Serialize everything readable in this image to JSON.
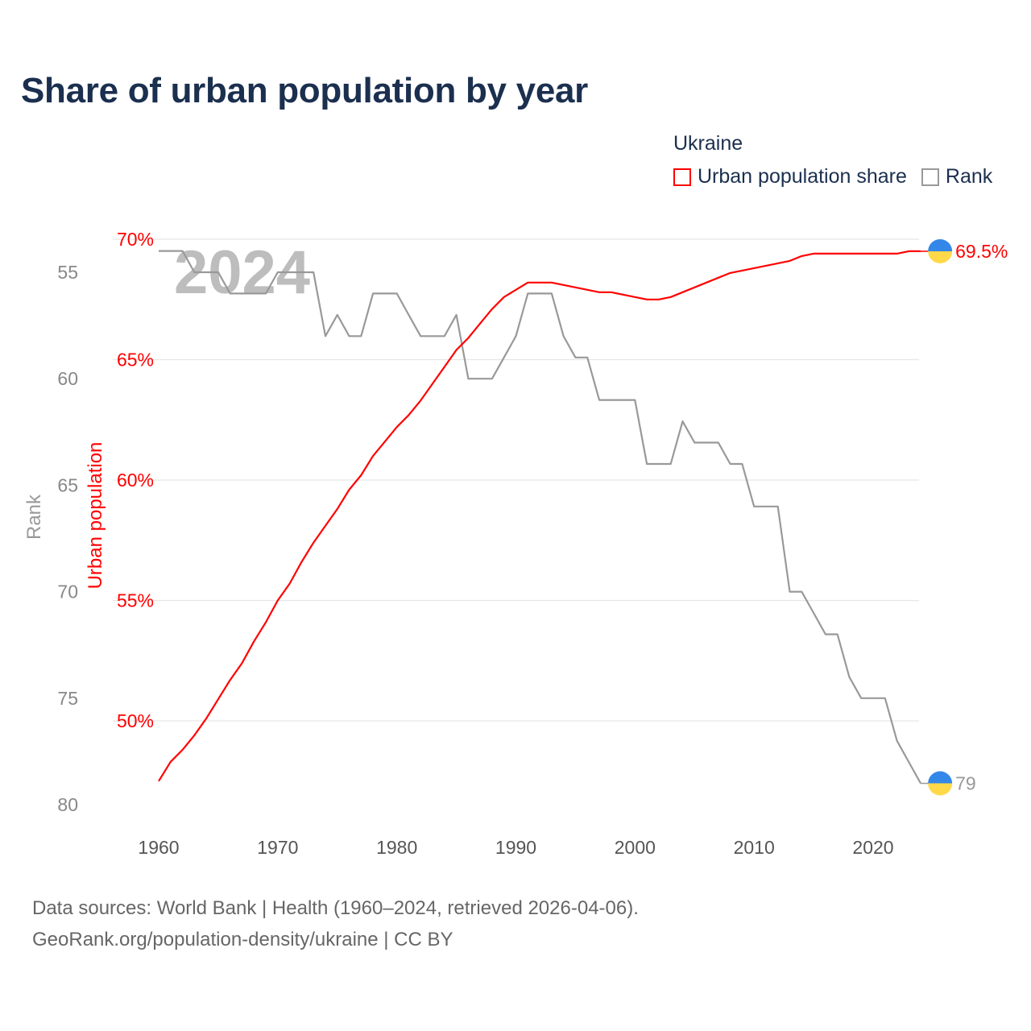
{
  "title": "Share of urban population by year",
  "legend": {
    "title": "Ukraine",
    "items": [
      {
        "label": "Urban population share",
        "color": "#ff0000"
      },
      {
        "label": "Rank",
        "color": "#999999"
      }
    ]
  },
  "footer": {
    "line1": "Data sources: World Bank | Health (1960–2024, retrieved 2026-04-06).",
    "line2": "GeoRank.org/population-density/ukraine | CC BY"
  },
  "chart_data": {
    "type": "line",
    "title": "Share of urban population by year",
    "watermark_year": "2024",
    "xlabel": "",
    "ylabel_right_axis": "Urban population",
    "ylabel_left_axis": "Rank",
    "xlim": [
      1960,
      2024
    ],
    "ylim_urban": [
      47,
      70.5
    ],
    "ylim_rank": [
      53.5,
      80.5
    ],
    "x_ticks": [
      "1960",
      "1970",
      "1980",
      "1990",
      "2000",
      "2010",
      "2020"
    ],
    "urban_ticks": [
      "70%",
      "65%",
      "60%",
      "55%",
      "50%"
    ],
    "rank_ticks": [
      "55",
      "60",
      "65",
      "70",
      "75",
      "80"
    ],
    "x": [
      1960,
      1961,
      1962,
      1963,
      1964,
      1965,
      1966,
      1967,
      1968,
      1969,
      1970,
      1971,
      1972,
      1973,
      1974,
      1975,
      1976,
      1977,
      1978,
      1979,
      1980,
      1981,
      1982,
      1983,
      1984,
      1985,
      1986,
      1987,
      1988,
      1989,
      1990,
      1991,
      1992,
      1993,
      1994,
      1995,
      1996,
      1997,
      1998,
      1999,
      2000,
      2001,
      2002,
      2003,
      2004,
      2005,
      2006,
      2007,
      2008,
      2009,
      2010,
      2011,
      2012,
      2013,
      2014,
      2015,
      2016,
      2017,
      2018,
      2019,
      2020,
      2021,
      2022,
      2023,
      2024
    ],
    "series": [
      {
        "name": "Urban population share",
        "color": "#ff0000",
        "values": [
          47.5,
          48.3,
          48.8,
          49.4,
          50.1,
          50.9,
          51.7,
          52.4,
          53.3,
          54.1,
          55.0,
          55.7,
          56.6,
          57.4,
          58.1,
          58.8,
          59.6,
          60.2,
          61.0,
          61.6,
          62.2,
          62.7,
          63.3,
          64.0,
          64.7,
          65.4,
          65.9,
          66.5,
          67.1,
          67.6,
          67.9,
          68.2,
          68.2,
          68.2,
          68.1,
          68.0,
          67.9,
          67.8,
          67.8,
          67.7,
          67.6,
          67.5,
          67.5,
          67.6,
          67.8,
          68.0,
          68.2,
          68.4,
          68.6,
          68.7,
          68.8,
          68.9,
          69.0,
          69.1,
          69.3,
          69.4,
          69.4,
          69.4,
          69.4,
          69.4,
          69.4,
          69.4,
          69.4,
          69.5,
          69.5
        ],
        "end_label": "69.5%"
      },
      {
        "name": "Rank",
        "color": "#999999",
        "values": [
          54,
          54,
          54,
          55,
          55,
          55,
          56,
          56,
          56,
          56,
          55,
          55,
          55,
          55,
          58,
          57,
          58,
          58,
          56,
          56,
          56,
          57,
          58,
          58,
          58,
          57,
          60,
          60,
          60,
          59,
          58,
          56,
          56,
          56,
          58,
          59,
          59,
          61,
          61,
          61,
          61,
          64,
          64,
          64,
          62,
          63,
          63,
          63,
          64,
          64,
          66,
          66,
          66,
          70,
          70,
          71,
          72,
          72,
          74,
          75,
          75,
          75,
          77,
          78,
          79
        ],
        "end_label": "79"
      }
    ],
    "grid": true,
    "legend_position": "top-right"
  }
}
